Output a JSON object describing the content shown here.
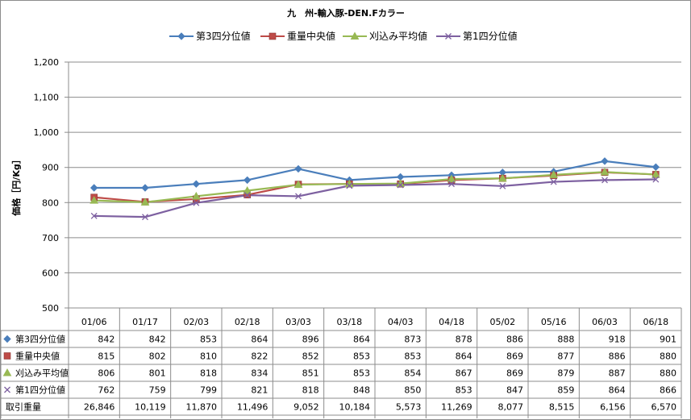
{
  "chart_data": {
    "type": "line",
    "title": "九　州-輸入豚-DEN.Fカラー",
    "ylabel": "価格［円/Kg］",
    "ylim": [
      500,
      1200
    ],
    "yticks": [
      "500",
      "600",
      "700",
      "800",
      "900",
      "1,000",
      "1,100",
      "1,200"
    ],
    "yticks_values": [
      500,
      600,
      700,
      800,
      900,
      1000,
      1100,
      1200
    ],
    "grid": "horizontal",
    "legend_position": "top",
    "categories": [
      "01/06",
      "01/17",
      "02/03",
      "02/18",
      "03/03",
      "03/18",
      "04/03",
      "04/18",
      "05/02",
      "05/16",
      "06/03",
      "06/18"
    ],
    "series": [
      {
        "name": "第3四分位値",
        "color": "#4a7ebb",
        "marker": "diamond",
        "values": [
          842,
          842,
          853,
          864,
          896,
          864,
          873,
          878,
          886,
          888,
          918,
          901
        ],
        "labels": [
          "842",
          "842",
          "853",
          "864",
          "896",
          "864",
          "873",
          "878",
          "886",
          "888",
          "918",
          "901"
        ]
      },
      {
        "name": "重量中央値",
        "color": "#be4b48",
        "marker": "square",
        "values": [
          815,
          802,
          810,
          822,
          852,
          853,
          853,
          864,
          869,
          877,
          886,
          880
        ],
        "labels": [
          "815",
          "802",
          "810",
          "822",
          "852",
          "853",
          "853",
          "864",
          "869",
          "877",
          "886",
          "880"
        ]
      },
      {
        "name": "刈込み平均値",
        "color": "#98b954",
        "marker": "triangle",
        "values": [
          806,
          801,
          818,
          834,
          851,
          853,
          854,
          867,
          869,
          879,
          887,
          880
        ],
        "labels": [
          "806",
          "801",
          "818",
          "834",
          "851",
          "853",
          "854",
          "867",
          "869",
          "879",
          "887",
          "880"
        ]
      },
      {
        "name": "第1四分位値",
        "color": "#7d60a0",
        "marker": "x",
        "values": [
          762,
          759,
          799,
          821,
          818,
          848,
          850,
          853,
          847,
          859,
          864,
          866
        ],
        "labels": [
          "762",
          "759",
          "799",
          "821",
          "818",
          "848",
          "850",
          "853",
          "847",
          "859",
          "864",
          "866"
        ]
      }
    ],
    "volume": {
      "name": "取引重量",
      "values": [
        "26,846",
        "10,119",
        "11,870",
        "11,496",
        "9,052",
        "10,184",
        "5,573",
        "11,269",
        "8,077",
        "8,515",
        "6,156",
        "6,570"
      ]
    }
  }
}
